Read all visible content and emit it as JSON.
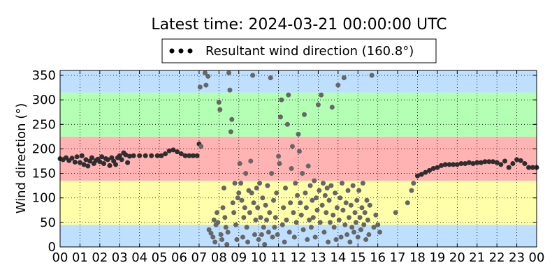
{
  "chart_data": {
    "type": "scatter",
    "title": "Latest time: 2024-03-21 00:00:00 UTC",
    "ylabel": "Wind direction (°)",
    "xlabel": "",
    "xlim": [
      0,
      24
    ],
    "ylim": [
      0,
      360
    ],
    "grid": true,
    "legend_position": "top-center",
    "x_tick_labels": [
      "00",
      "01",
      "02",
      "03",
      "04",
      "05",
      "06",
      "07",
      "08",
      "09",
      "10",
      "11",
      "12",
      "13",
      "14",
      "15",
      "16",
      "17",
      "18",
      "19",
      "20",
      "21",
      "22",
      "23",
      "00"
    ],
    "y_ticks": [
      0,
      50,
      100,
      150,
      200,
      250,
      300,
      350
    ],
    "bands": [
      {
        "from": 0,
        "to": 45,
        "color": "#bfdfff"
      },
      {
        "from": 45,
        "to": 135,
        "color": "#ffffaa"
      },
      {
        "from": 135,
        "to": 225,
        "color": "#ffb3b3"
      },
      {
        "from": 225,
        "to": 315,
        "color": "#b3ffb3"
      },
      {
        "from": 315,
        "to": 360,
        "color": "#bfdfff"
      }
    ],
    "series": [
      {
        "name": "Resultant wind direction (160.8°)",
        "marker_color": "#000000",
        "points": [
          [
            0.0,
            180
          ],
          [
            0.15,
            178
          ],
          [
            0.3,
            182
          ],
          [
            0.45,
            176
          ],
          [
            0.6,
            181
          ],
          [
            0.75,
            173
          ],
          [
            0.85,
            184
          ],
          [
            1.0,
            172
          ],
          [
            1.1,
            186
          ],
          [
            1.2,
            168
          ],
          [
            1.3,
            178
          ],
          [
            1.4,
            165
          ],
          [
            1.5,
            175
          ],
          [
            1.6,
            182
          ],
          [
            1.7,
            170
          ],
          [
            1.8,
            176
          ],
          [
            1.9,
            179
          ],
          [
            2.0,
            174
          ],
          [
            2.1,
            184
          ],
          [
            2.2,
            170
          ],
          [
            2.3,
            180
          ],
          [
            2.4,
            178
          ],
          [
            2.5,
            166
          ],
          [
            2.6,
            182
          ],
          [
            2.7,
            175
          ],
          [
            2.8,
            168
          ],
          [
            2.9,
            182
          ],
          [
            3.0,
            186
          ],
          [
            3.1,
            178
          ],
          [
            3.2,
            192
          ],
          [
            3.3,
            188
          ],
          [
            3.4,
            172
          ],
          [
            3.5,
            185
          ],
          [
            3.7,
            186
          ],
          [
            4.0,
            186
          ],
          [
            4.3,
            186
          ],
          [
            4.6,
            186
          ],
          [
            4.9,
            186
          ],
          [
            5.1,
            186
          ],
          [
            5.3,
            190
          ],
          [
            5.5,
            196
          ],
          [
            5.7,
            198
          ],
          [
            5.9,
            194
          ],
          [
            6.1,
            190
          ],
          [
            6.3,
            186
          ],
          [
            6.5,
            186
          ],
          [
            6.7,
            186
          ],
          [
            6.9,
            186
          ],
          [
            7.0,
            210
          ],
          [
            7.1,
            205
          ],
          [
            7.05,
            326
          ],
          [
            7.3,
            355
          ],
          [
            7.35,
            330
          ],
          [
            7.45,
            348
          ],
          [
            7.5,
            35
          ],
          [
            7.6,
            28
          ],
          [
            7.7,
            20
          ],
          [
            7.75,
            55
          ],
          [
            7.8,
            10
          ],
          [
            7.85,
            45
          ],
          [
            7.9,
            70
          ],
          [
            7.95,
            50
          ],
          [
            8.0,
            295
          ],
          [
            8.05,
            280
          ],
          [
            8.1,
            25
          ],
          [
            8.15,
            15
          ],
          [
            8.2,
            80
          ],
          [
            8.25,
            120
          ],
          [
            8.3,
            60
          ],
          [
            8.35,
            40
          ],
          [
            8.4,
            5
          ],
          [
            8.45,
            30
          ],
          [
            8.5,
            355
          ],
          [
            8.55,
            320
          ],
          [
            8.6,
            235
          ],
          [
            8.65,
            260
          ],
          [
            8.7,
            90
          ],
          [
            8.75,
            70
          ],
          [
            8.8,
            130
          ],
          [
            8.85,
            45
          ],
          [
            8.9,
            15
          ],
          [
            8.95,
            100
          ],
          [
            9.0,
            110
          ],
          [
            9.05,
            170
          ],
          [
            9.1,
            130
          ],
          [
            9.15,
            95
          ],
          [
            9.2,
            20
          ],
          [
            9.25,
            60
          ],
          [
            9.3,
            80
          ],
          [
            9.35,
            150
          ],
          [
            9.4,
            40
          ],
          [
            9.45,
            10
          ],
          [
            9.5,
            115
          ],
          [
            9.55,
            70
          ],
          [
            9.6,
            175
          ],
          [
            9.65,
            110
          ],
          [
            9.7,
            350
          ],
          [
            9.75,
            90
          ],
          [
            9.8,
            25
          ],
          [
            9.85,
            55
          ],
          [
            9.9,
            120
          ],
          [
            9.95,
            80
          ],
          [
            10.0,
            15
          ],
          [
            10.05,
            130
          ],
          [
            10.1,
            60
          ],
          [
            10.15,
            25
          ],
          [
            10.2,
            100
          ],
          [
            10.25,
            40
          ],
          [
            10.3,
            5
          ],
          [
            10.35,
            85
          ],
          [
            10.4,
            55
          ],
          [
            10.45,
            125
          ],
          [
            10.5,
            30
          ],
          [
            10.55,
            70
          ],
          [
            10.6,
            345
          ],
          [
            10.65,
            150
          ],
          [
            10.7,
            20
          ],
          [
            10.75,
            95
          ],
          [
            10.8,
            40
          ],
          [
            10.85,
            60
          ],
          [
            10.9,
            110
          ],
          [
            10.95,
            25
          ],
          [
            11.0,
            185
          ],
          [
            11.05,
            170
          ],
          [
            11.1,
            265
          ],
          [
            11.15,
            300
          ],
          [
            11.2,
            45
          ],
          [
            11.25,
            80
          ],
          [
            11.3,
            10
          ],
          [
            11.35,
            120
          ],
          [
            11.4,
            55
          ],
          [
            11.45,
            250
          ],
          [
            11.5,
            310
          ],
          [
            11.55,
            30
          ],
          [
            11.6,
            90
          ],
          [
            11.65,
            160
          ],
          [
            11.7,
            205
          ],
          [
            11.75,
            70
          ],
          [
            11.8,
            20
          ],
          [
            11.85,
            130
          ],
          [
            11.9,
            50
          ],
          [
            11.95,
            105
          ],
          [
            12.0,
            230
          ],
          [
            12.05,
            195
          ],
          [
            12.1,
            90
          ],
          [
            12.15,
            65
          ],
          [
            12.2,
            150
          ],
          [
            12.25,
            35
          ],
          [
            12.3,
            270
          ],
          [
            12.35,
            110
          ],
          [
            12.4,
            80
          ],
          [
            12.45,
            15
          ],
          [
            12.5,
            165
          ],
          [
            12.55,
            55
          ],
          [
            12.6,
            125
          ],
          [
            12.65,
            40
          ],
          [
            12.7,
            95
          ],
          [
            12.75,
            60
          ],
          [
            12.8,
            135
          ],
          [
            12.85,
            20
          ],
          [
            12.9,
            100
          ],
          [
            12.95,
            75
          ],
          [
            13.0,
            290
          ],
          [
            13.05,
            115
          ],
          [
            13.1,
            50
          ],
          [
            13.15,
            310
          ],
          [
            13.2,
            85
          ],
          [
            13.25,
            130
          ],
          [
            13.3,
            30
          ],
          [
            13.35,
            105
          ],
          [
            13.4,
            70
          ],
          [
            13.45,
            120
          ],
          [
            13.5,
            10
          ],
          [
            13.55,
            95
          ],
          [
            13.6,
            50
          ],
          [
            13.65,
            125
          ],
          [
            13.7,
            285
          ],
          [
            13.75,
            65
          ],
          [
            13.8,
            40
          ],
          [
            13.85,
            110
          ],
          [
            13.9,
            15
          ],
          [
            13.95,
            80
          ],
          [
            14.0,
            330
          ],
          [
            14.05,
            55
          ],
          [
            14.1,
            100
          ],
          [
            14.15,
            20
          ],
          [
            14.2,
            130
          ],
          [
            14.25,
            75
          ],
          [
            14.3,
            345
          ],
          [
            14.35,
            45
          ],
          [
            14.4,
            90
          ],
          [
            14.45,
            25
          ],
          [
            14.5,
            115
          ],
          [
            14.55,
            60
          ],
          [
            14.6,
            10
          ],
          [
            14.65,
            85
          ],
          [
            14.7,
            40
          ],
          [
            14.75,
            125
          ],
          [
            14.8,
            30
          ],
          [
            14.85,
            70
          ],
          [
            14.9,
            50
          ],
          [
            14.95,
            95
          ],
          [
            15.0,
            20
          ],
          [
            15.05,
            115
          ],
          [
            15.1,
            60
          ],
          [
            15.15,
            35
          ],
          [
            15.2,
            80
          ],
          [
            15.25,
            130
          ],
          [
            15.3,
            45
          ],
          [
            15.35,
            70
          ],
          [
            15.4,
            15
          ],
          [
            15.45,
            95
          ],
          [
            15.5,
            55
          ],
          [
            15.55,
            25
          ],
          [
            15.6,
            85
          ],
          [
            15.7,
            350
          ],
          [
            15.8,
            40
          ],
          [
            15.9,
            65
          ],
          [
            16.0,
            45
          ],
          [
            16.1,
            30
          ],
          [
            16.9,
            70
          ],
          [
            17.5,
            90
          ],
          [
            17.7,
            115
          ],
          [
            17.8,
            130
          ],
          [
            18.0,
            145
          ],
          [
            18.2,
            148
          ],
          [
            18.4,
            152
          ],
          [
            18.6,
            156
          ],
          [
            18.8,
            160
          ],
          [
            19.0,
            162
          ],
          [
            19.2,
            166
          ],
          [
            19.4,
            168
          ],
          [
            19.6,
            168
          ],
          [
            19.8,
            168
          ],
          [
            20.0,
            168
          ],
          [
            20.2,
            170
          ],
          [
            20.4,
            170
          ],
          [
            20.6,
            172
          ],
          [
            20.8,
            170
          ],
          [
            21.0,
            172
          ],
          [
            21.2,
            172
          ],
          [
            21.4,
            174
          ],
          [
            21.6,
            174
          ],
          [
            21.8,
            174
          ],
          [
            22.0,
            172
          ],
          [
            22.2,
            168
          ],
          [
            22.4,
            175
          ],
          [
            22.6,
            162
          ],
          [
            22.8,
            170
          ],
          [
            23.0,
            178
          ],
          [
            23.2,
            176
          ],
          [
            23.4,
            170
          ],
          [
            23.6,
            162
          ],
          [
            23.8,
            162
          ],
          [
            24.0,
            162
          ]
        ]
      }
    ]
  }
}
